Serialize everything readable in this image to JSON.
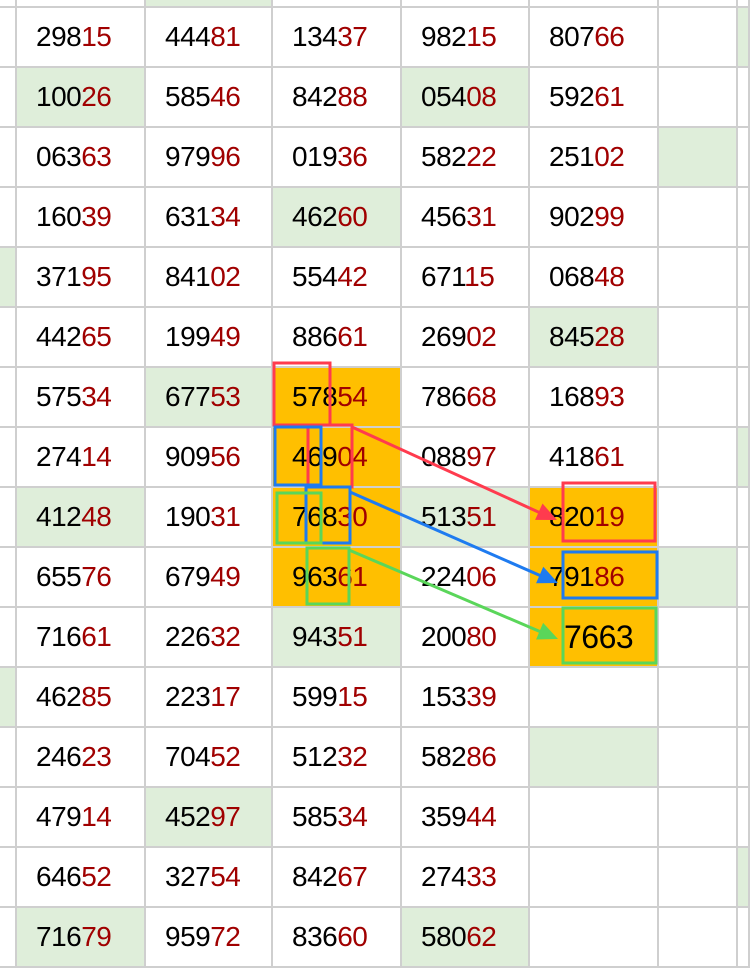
{
  "rows": [
    [
      "29815",
      "44481",
      "13437",
      "98215",
      "80766"
    ],
    [
      "10026",
      "58546",
      "84288",
      "05408",
      "59261"
    ],
    [
      "06363",
      "97996",
      "01936",
      "58222",
      "25102"
    ],
    [
      "16039",
      "63134",
      "46260",
      "45631",
      "90299"
    ],
    [
      "37195",
      "84102",
      "55442",
      "67115",
      "06848"
    ],
    [
      "44265",
      "19949",
      "88661",
      "26902",
      "84528"
    ],
    [
      "57534",
      "67753",
      "57854",
      "78668",
      "16893"
    ],
    [
      "27414",
      "90956",
      "46904",
      "08897",
      "41861"
    ],
    [
      "41248",
      "19031",
      "76830",
      "51351",
      "82019"
    ],
    [
      "65576",
      "67949",
      "96361",
      "22406",
      "79186"
    ],
    [
      "71661",
      "22632",
      "94351",
      "20080",
      "7663"
    ],
    [
      "46285",
      "22317",
      "59915",
      "15339",
      ""
    ],
    [
      "24623",
      "70452",
      "51232",
      "58286",
      ""
    ],
    [
      "47914",
      "45297",
      "58534",
      "35944",
      ""
    ],
    [
      "64652",
      "32754",
      "84267",
      "27433",
      ""
    ],
    [
      "71679",
      "95972",
      "83660",
      "58062",
      ""
    ]
  ],
  "colors": {
    "green": "#dfeeda",
    "orange": "#ffbf00",
    "red_digits": "#a00000",
    "arrow_red": "#ff3b4e",
    "arrow_blue": "#1e7bf0",
    "arrow_green": "#5ad65a"
  },
  "highlights": {
    "green": [
      [
        1,
        1
      ],
      [
        1,
        4
      ],
      [
        2,
        6
      ],
      [
        3,
        3
      ],
      [
        4,
        0
      ],
      [
        5,
        5
      ],
      [
        6,
        2
      ],
      [
        8,
        1
      ],
      [
        8,
        4
      ],
      [
        9,
        6
      ],
      [
        10,
        3
      ],
      [
        11,
        0
      ],
      [
        12,
        5
      ],
      [
        13,
        2
      ],
      [
        14,
        7
      ],
      [
        15,
        1
      ],
      [
        15,
        4
      ],
      [
        0,
        7
      ],
      [
        7,
        7
      ]
    ],
    "orange": [
      [
        6,
        3
      ],
      [
        7,
        3
      ],
      [
        8,
        3
      ],
      [
        9,
        3
      ],
      [
        8,
        5
      ],
      [
        9,
        5
      ],
      [
        10,
        5
      ]
    ]
  }
}
